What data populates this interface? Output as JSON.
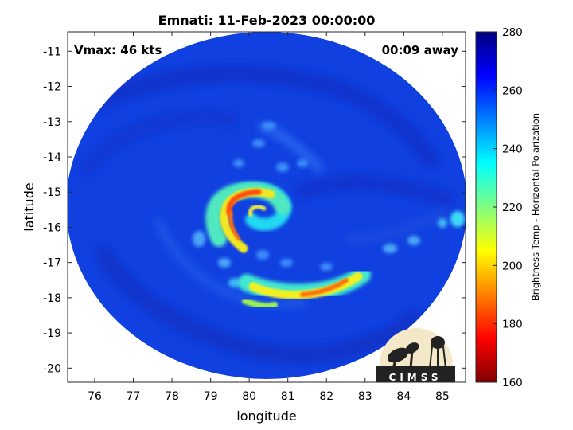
{
  "title": "Emnati: 11-Feb-2023 00:00:00",
  "annotations": {
    "vmax": "Vmax: 46 kts",
    "away": "00:09 away"
  },
  "axes": {
    "xlabel": "longitude",
    "ylabel": "latitude",
    "xlim": [
      75.3,
      85.6
    ],
    "ylim": [
      -20.4,
      -10.45
    ],
    "xticks": [
      76,
      77,
      78,
      79,
      80,
      81,
      82,
      83,
      84,
      85
    ],
    "yticks": [
      -11,
      -12,
      -13,
      -14,
      -15,
      -16,
      -17,
      -18,
      -19,
      -20
    ]
  },
  "colorbar": {
    "label": "Brightness Temp - Horizontal Polarization",
    "range": [
      160,
      280
    ],
    "ticks": [
      280,
      260,
      240,
      220,
      200,
      180,
      160
    ],
    "colormap": "jet"
  },
  "logo": {
    "text": "CIMSS"
  },
  "colors": {
    "background": "#1040e0",
    "swath_edge": "#0a28c8"
  }
}
